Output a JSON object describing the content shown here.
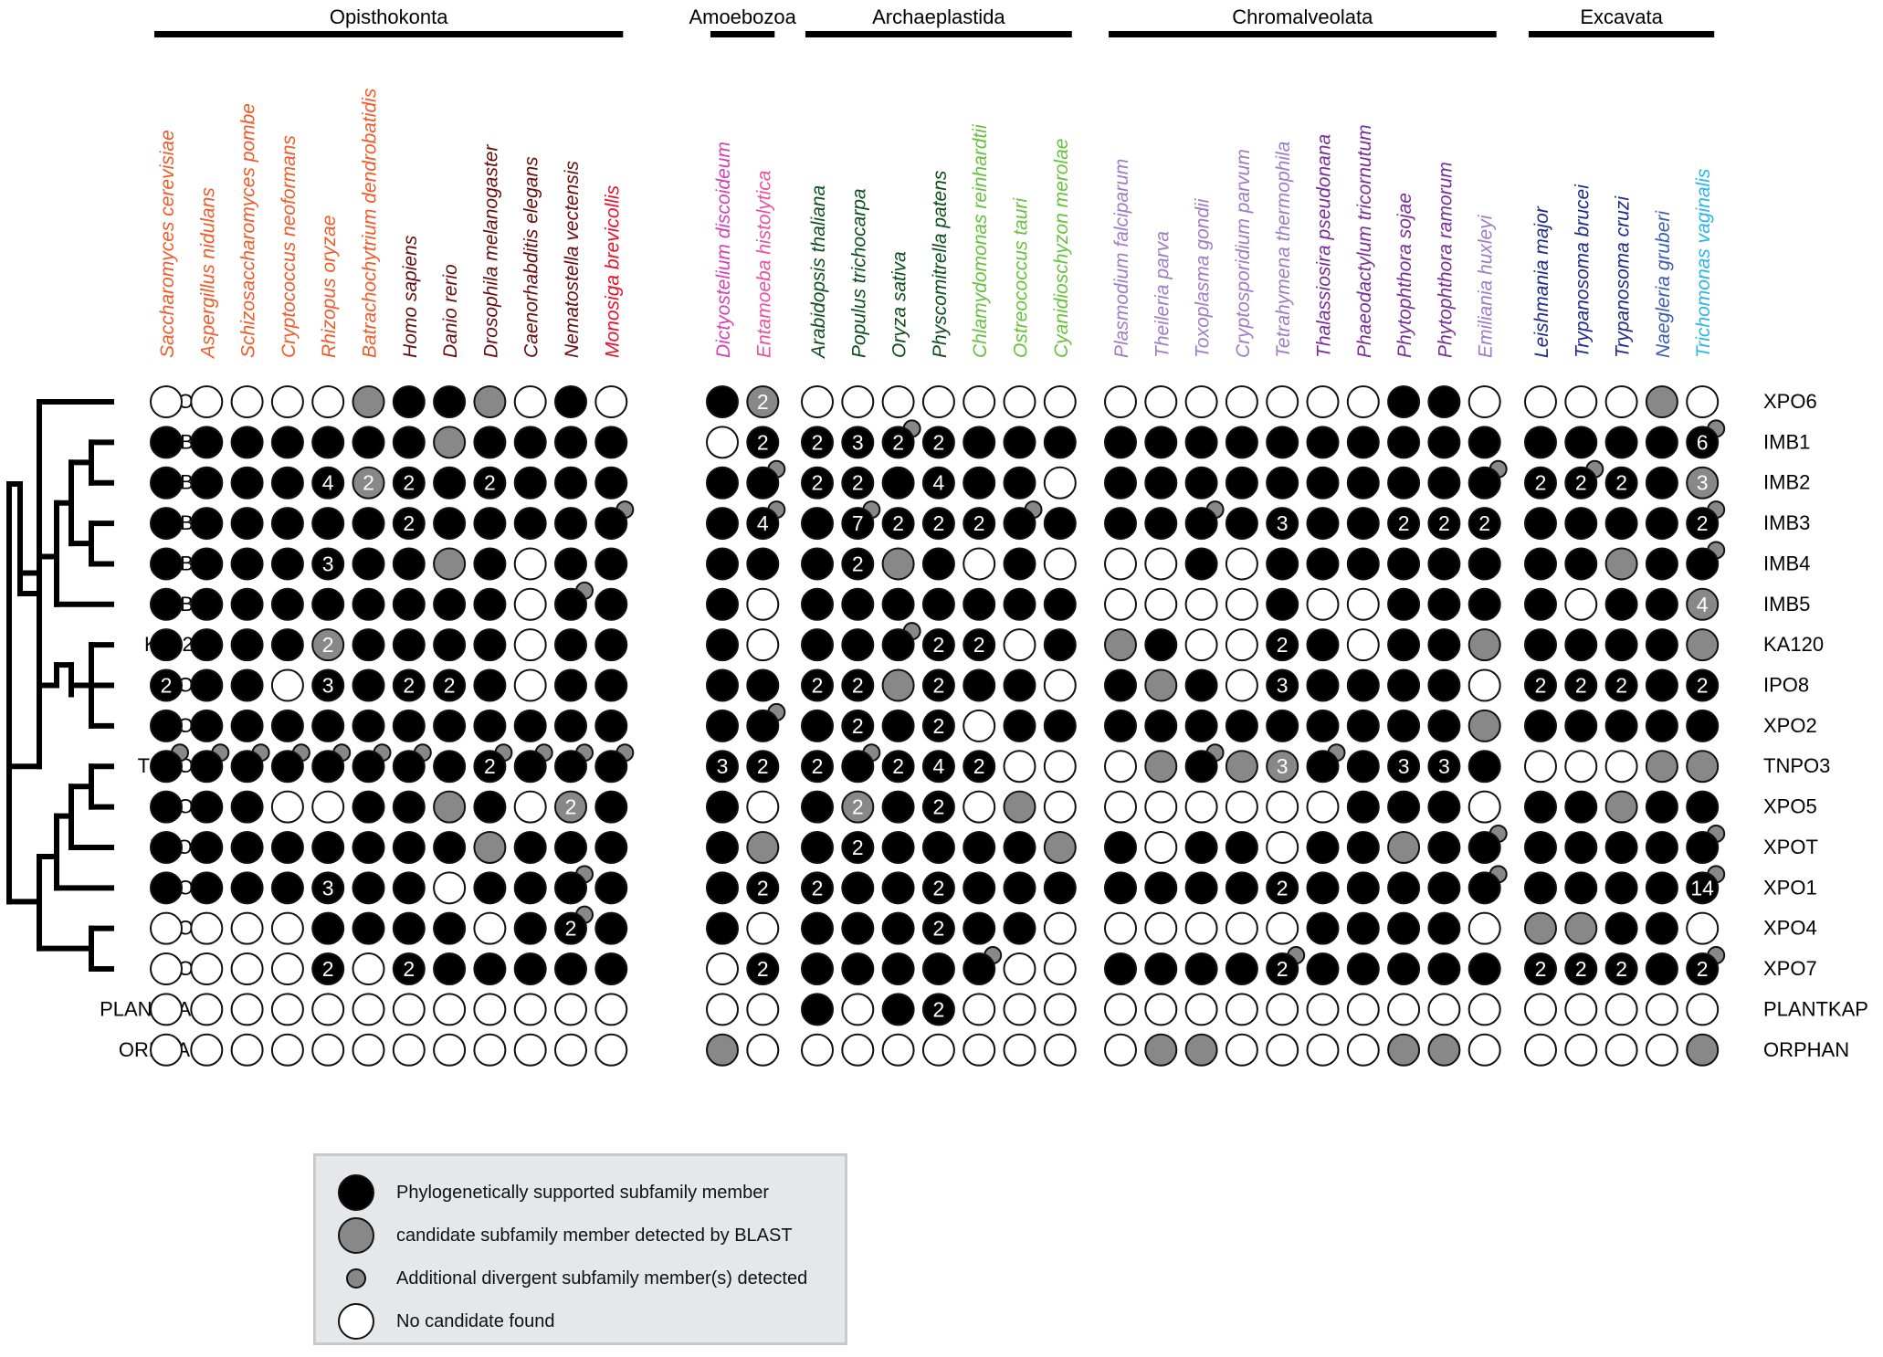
{
  "groups": [
    {
      "name": "Opisthokonta",
      "count": 12
    },
    {
      "name": "Amoebozoa",
      "count": 2
    },
    {
      "name": "Archaeplastida",
      "count": 7
    },
    {
      "name": "Chromalveolata",
      "count": 10
    },
    {
      "name": "Excavata",
      "count": 5
    }
  ],
  "species": [
    {
      "name": "Saccharomyces cerevisiae",
      "color": "#f15a29"
    },
    {
      "name": "Aspergillus nidulans",
      "color": "#f15a29"
    },
    {
      "name": "Schizosaccharomyces pombe",
      "color": "#f15a29"
    },
    {
      "name": "Cryptococcus neoformans",
      "color": "#f15a29"
    },
    {
      "name": "Rhizopus oryzae",
      "color": "#f15a29"
    },
    {
      "name": "Batrachochytrium dendrobatidis",
      "color": "#f15a29"
    },
    {
      "name": "Homo sapiens",
      "color": "#6b0d0d"
    },
    {
      "name": "Danio rerio",
      "color": "#6b0d0d"
    },
    {
      "name": "Drosophila melanogaster",
      "color": "#6b0d0d"
    },
    {
      "name": "Caenorhabditis elegans",
      "color": "#6b0d0d"
    },
    {
      "name": "Nematostella vectensis",
      "color": "#6b0d0d"
    },
    {
      "name": "Monosiga brevicollis",
      "color": "#e8102a"
    },
    {
      "name": "Dictyostelium discoideum",
      "color": "#d940b5"
    },
    {
      "name": "Entamoeba histolytica",
      "color": "#ec4fa3"
    },
    {
      "name": "Arabidopsis thaliana",
      "color": "#0d4d1e"
    },
    {
      "name": "Populus trichocarpa",
      "color": "#0d4d1e"
    },
    {
      "name": "Oryza sativa",
      "color": "#0d4d1e"
    },
    {
      "name": "Physcomitrella patens",
      "color": "#0d4d1e"
    },
    {
      "name": "Chlamydomonas reinhardtii",
      "color": "#66c23d"
    },
    {
      "name": "Ostreococcus tauri",
      "color": "#66c23d"
    },
    {
      "name": "Cyanidioschyzon merolae",
      "color": "#66c23d"
    },
    {
      "name": "Plasmodium falciparum",
      "color": "#a07cc5"
    },
    {
      "name": "Theileria parva",
      "color": "#a07cc5"
    },
    {
      "name": "Toxoplasma gondii",
      "color": "#a07cc5"
    },
    {
      "name": "Cryptosporidium parvum",
      "color": "#a07cc5"
    },
    {
      "name": "Tetrahymena thermophila",
      "color": "#a07cc5"
    },
    {
      "name": "Thalassiosira pseudonana",
      "color": "#7b2d9a"
    },
    {
      "name": "Phaeodactylum tricornutum",
      "color": "#7b2d9a"
    },
    {
      "name": "Phytophthora sojae",
      "color": "#7b2d9a"
    },
    {
      "name": "Phytophthora ramorum",
      "color": "#7b2d9a"
    },
    {
      "name": "Emiliania huxleyi",
      "color": "#a07cc5"
    },
    {
      "name": "Leishmania major",
      "color": "#1e2a8a"
    },
    {
      "name": "Trypanosoma brucei",
      "color": "#1e2a8a"
    },
    {
      "name": "Trypanosoma cruzi",
      "color": "#1e2a8a"
    },
    {
      "name": "Naegleria gruberi",
      "color": "#3b5fb5"
    },
    {
      "name": "Trichomonas vaginalis",
      "color": "#29b6e8"
    }
  ],
  "rows": [
    {
      "name": "XPO6",
      "cells": [
        "W",
        "W",
        "W",
        "W",
        "W",
        "G",
        "B",
        "B",
        "G",
        "W",
        "B",
        "W",
        "B",
        "G:2",
        "W",
        "W",
        "W",
        "W",
        "W",
        "W",
        "W",
        "W",
        "W",
        "W",
        "W",
        "W",
        "W",
        "W",
        "B",
        "B",
        "W",
        "W",
        "W",
        "W",
        "G",
        "W"
      ]
    },
    {
      "name": "IMB1",
      "cells": [
        "B",
        "B",
        "B",
        "B",
        "B",
        "B",
        "B",
        "G",
        "B",
        "B",
        "B",
        "B",
        "W",
        "B:2",
        "B:2",
        "B:3",
        "B:2+",
        "B:2",
        "B",
        "B",
        "B",
        "B",
        "B",
        "B",
        "B",
        "B",
        "B",
        "B",
        "B",
        "B",
        "B",
        "B",
        "B",
        "B",
        "B",
        "B:6+"
      ]
    },
    {
      "name": "IMB2",
      "cells": [
        "B",
        "B",
        "B",
        "B",
        "B:4",
        "G:2",
        "B:2",
        "B",
        "B:2",
        "B",
        "B",
        "B",
        "B",
        "B+",
        "B:2",
        "B:2",
        "B",
        "B:4",
        "B",
        "B",
        "W",
        "B",
        "B",
        "B",
        "B",
        "B",
        "B",
        "B",
        "B",
        "B",
        "B+",
        "B:2",
        "B:2+",
        "B:2",
        "B",
        "G:3"
      ]
    },
    {
      "name": "IMB3",
      "cells": [
        "B",
        "B",
        "B",
        "B",
        "B",
        "B",
        "B:2",
        "B",
        "B",
        "B",
        "B",
        "B+",
        "B",
        "B:4+",
        "B",
        "B:7+",
        "B:2",
        "B:2",
        "B:2",
        "B+",
        "B",
        "B",
        "B",
        "B+",
        "B",
        "B:3",
        "B",
        "B",
        "B:2",
        "B:2",
        "B:2",
        "B",
        "B",
        "B",
        "B",
        "B:2+"
      ]
    },
    {
      "name": "IMB4",
      "cells": [
        "B",
        "B",
        "B",
        "B",
        "B:3",
        "B",
        "B",
        "G",
        "B",
        "W",
        "B",
        "B",
        "B",
        "B",
        "B",
        "B:2",
        "G",
        "B",
        "W",
        "B",
        "W",
        "W",
        "W",
        "B",
        "W",
        "B",
        "B",
        "B",
        "B",
        "B",
        "B",
        "B",
        "B",
        "G",
        "B",
        "B+"
      ]
    },
    {
      "name": "IMB5",
      "cells": [
        "B",
        "B",
        "B",
        "B",
        "B",
        "B",
        "B",
        "B",
        "B",
        "W",
        "B+",
        "B",
        "B",
        "W",
        "B",
        "B",
        "B",
        "B",
        "B",
        "B",
        "B",
        "W",
        "W",
        "W",
        "W",
        "B",
        "W",
        "W",
        "B",
        "B",
        "B",
        "B",
        "W",
        "B",
        "B",
        "G:4"
      ]
    },
    {
      "name": "KA120",
      "cells": [
        "B",
        "B",
        "B",
        "B",
        "G:2",
        "B",
        "B",
        "B",
        "B",
        "W",
        "B",
        "B",
        "B",
        "W",
        "B",
        "B",
        "B+",
        "B:2",
        "B:2",
        "W",
        "B",
        "G",
        "B",
        "W",
        "W",
        "B:2",
        "B",
        "W",
        "B",
        "B",
        "G",
        "B",
        "B",
        "B",
        "B",
        "G"
      ]
    },
    {
      "name": "IPO8",
      "cells": [
        "B:2",
        "B",
        "B",
        "W",
        "B:3",
        "B",
        "B:2",
        "B:2",
        "B",
        "W",
        "B",
        "B",
        "B",
        "B",
        "B:2",
        "B:2",
        "G",
        "B:2",
        "B",
        "B",
        "W",
        "B",
        "G",
        "B",
        "W",
        "B:3",
        "B",
        "B",
        "B",
        "B",
        "W",
        "B:2",
        "B:2",
        "B:2",
        "B",
        "B:2"
      ]
    },
    {
      "name": "XPO2",
      "cells": [
        "B",
        "B",
        "B",
        "B",
        "B",
        "B",
        "B",
        "B",
        "B",
        "B",
        "B",
        "B",
        "B",
        "B+",
        "B",
        "B:2",
        "B",
        "B:2",
        "W",
        "B",
        "B",
        "B",
        "B",
        "B",
        "B",
        "B",
        "B",
        "B",
        "B",
        "B",
        "G",
        "B",
        "B",
        "B",
        "B",
        "B"
      ]
    },
    {
      "name": "TNPO3",
      "cells": [
        "B+",
        "B+",
        "B+",
        "B+",
        "B+",
        "B+",
        "B+",
        "B",
        "B:2+",
        "B+",
        "B+",
        "B+",
        "B:3",
        "B:2",
        "B:2",
        "B+",
        "B:2",
        "B:4",
        "B:2",
        "W",
        "W",
        "W",
        "G",
        "B+",
        "G",
        "G:3",
        "B+",
        "B",
        "B:3",
        "B:3",
        "B",
        "W",
        "W",
        "W",
        "G",
        "G"
      ]
    },
    {
      "name": "XPO5",
      "cells": [
        "B",
        "B",
        "B",
        "W",
        "W",
        "B",
        "B",
        "G",
        "B",
        "W",
        "G:2",
        "B",
        "B",
        "W",
        "B",
        "G:2",
        "B",
        "B:2",
        "W",
        "G",
        "W",
        "W",
        "W",
        "W",
        "W",
        "W",
        "W",
        "B",
        "B",
        "B",
        "W",
        "B",
        "B",
        "G",
        "B",
        "B"
      ]
    },
    {
      "name": "XPOT",
      "cells": [
        "B",
        "B",
        "B",
        "B",
        "B",
        "B",
        "B",
        "B",
        "G",
        "B",
        "B",
        "B",
        "B",
        "G",
        "B",
        "B:2",
        "B",
        "B",
        "B",
        "B",
        "G",
        "B",
        "W",
        "B",
        "B",
        "W",
        "B",
        "B",
        "G",
        "B",
        "B+",
        "B",
        "B",
        "B",
        "B",
        "B+"
      ]
    },
    {
      "name": "XPO1",
      "cells": [
        "B",
        "B",
        "B",
        "B",
        "B:3",
        "B",
        "B",
        "W",
        "B",
        "B",
        "B+",
        "B",
        "B",
        "B:2",
        "B:2",
        "B",
        "B",
        "B:2",
        "B",
        "B",
        "B",
        "B",
        "B",
        "B",
        "B",
        "B:2",
        "B",
        "B",
        "B",
        "B",
        "B+",
        "B",
        "B",
        "B",
        "B",
        "B:14+"
      ]
    },
    {
      "name": "XPO4",
      "cells": [
        "W",
        "W",
        "W",
        "W",
        "B",
        "B",
        "B",
        "B",
        "W",
        "B",
        "B:2+",
        "B",
        "B",
        "W",
        "B",
        "B",
        "B",
        "B:2",
        "B",
        "B",
        "W",
        "W",
        "W",
        "W",
        "W",
        "W",
        "B",
        "B",
        "B",
        "B",
        "W",
        "G",
        "G",
        "B",
        "B",
        "W"
      ]
    },
    {
      "name": "XPO7",
      "cells": [
        "W",
        "W",
        "W",
        "W",
        "B:2",
        "W",
        "B:2",
        "B",
        "B",
        "B",
        "B",
        "B",
        "W",
        "B:2",
        "B",
        "B",
        "B",
        "B",
        "B+",
        "W",
        "W",
        "B",
        "B",
        "B",
        "B",
        "B:2+",
        "B",
        "B",
        "B",
        "B",
        "B",
        "B:2",
        "B:2",
        "B:2",
        "B",
        "B:2+"
      ]
    },
    {
      "name": "PLANTKAP",
      "cells": [
        "W",
        "W",
        "W",
        "W",
        "W",
        "W",
        "W",
        "W",
        "W",
        "W",
        "W",
        "W",
        "W",
        "W",
        "B",
        "W",
        "B",
        "B:2",
        "W",
        "W",
        "W",
        "W",
        "W",
        "W",
        "W",
        "W",
        "W",
        "W",
        "W",
        "W",
        "W",
        "W",
        "W",
        "W",
        "W",
        "W"
      ]
    },
    {
      "name": "ORPHAN",
      "cells": [
        "W",
        "W",
        "W",
        "W",
        "W",
        "W",
        "W",
        "W",
        "W",
        "W",
        "W",
        "W",
        "G",
        "W",
        "W",
        "W",
        "W",
        "W",
        "W",
        "W",
        "W",
        "W",
        "G",
        "G",
        "W",
        "W",
        "W",
        "W",
        "G",
        "G",
        "W",
        "W",
        "W",
        "W",
        "W",
        "G"
      ]
    }
  ],
  "legend": {
    "items": [
      {
        "type": "black",
        "label": "Phylogenetically supported subfamily member"
      },
      {
        "type": "grey",
        "label": "candidate subfamily member detected by BLAST"
      },
      {
        "type": "small-grey",
        "label": "Additional divergent subfamily member(s) detected"
      },
      {
        "type": "white",
        "label": "No candidate found"
      }
    ]
  },
  "colors": {
    "filled": "#000000",
    "candidate": "#888888",
    "empty": "#ffffff",
    "legend_background": "#e6e7e8"
  }
}
